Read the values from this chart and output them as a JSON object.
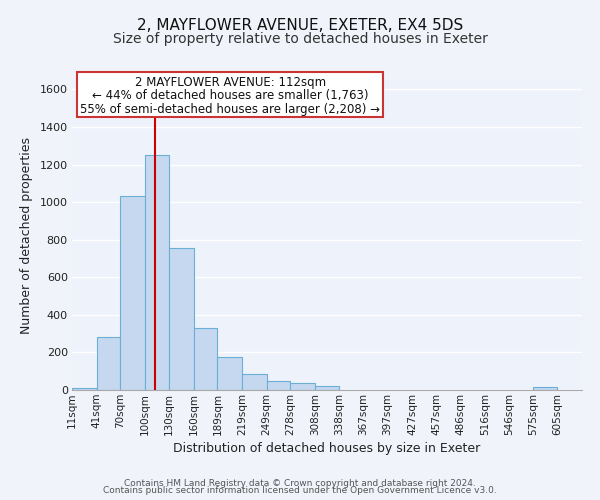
{
  "title": "2, MAYFLOWER AVENUE, EXETER, EX4 5DS",
  "subtitle": "Size of property relative to detached houses in Exeter",
  "xlabel": "Distribution of detached houses by size in Exeter",
  "ylabel": "Number of detached properties",
  "bar_left_edges": [
    11,
    41,
    70,
    100,
    130,
    160,
    189,
    219,
    249,
    278,
    308,
    338,
    367,
    397,
    427,
    457,
    486,
    516,
    546,
    575
  ],
  "bar_heights": [
    10,
    280,
    1035,
    1250,
    755,
    330,
    175,
    85,
    50,
    35,
    20,
    0,
    0,
    0,
    0,
    0,
    0,
    0,
    0,
    15
  ],
  "bar_widths": [
    30,
    29,
    30,
    30,
    30,
    29,
    30,
    30,
    29,
    30,
    30,
    29,
    30,
    30,
    30,
    29,
    30,
    30,
    29,
    30
  ],
  "tick_labels": [
    "11sqm",
    "41sqm",
    "70sqm",
    "100sqm",
    "130sqm",
    "160sqm",
    "189sqm",
    "219sqm",
    "249sqm",
    "278sqm",
    "308sqm",
    "338sqm",
    "367sqm",
    "397sqm",
    "427sqm",
    "457sqm",
    "486sqm",
    "516sqm",
    "546sqm",
    "575sqm",
    "605sqm"
  ],
  "tick_positions": [
    11,
    41,
    70,
    100,
    130,
    160,
    189,
    219,
    249,
    278,
    308,
    338,
    367,
    397,
    427,
    457,
    486,
    516,
    546,
    575,
    605
  ],
  "bar_color": "#c5d8f0",
  "bar_edge_color": "#6baed6",
  "vline_x": 112,
  "vline_color": "#cc0000",
  "ylim": [
    0,
    1650
  ],
  "xlim": [
    11,
    635
  ],
  "annotation_line1": "2 MAYFLOWER AVENUE: 112sqm",
  "annotation_line2": "← 44% of detached houses are smaller (1,763)",
  "annotation_line3": "55% of semi-detached houses are larger (2,208) →",
  "footer_line1": "Contains HM Land Registry data © Crown copyright and database right 2024.",
  "footer_line2": "Contains public sector information licensed under the Open Government Licence v3.0.",
  "bg_color": "#f0f4fa",
  "plot_bg_color": "#eef2fa",
  "grid_color": "#ffffff",
  "title_fontsize": 11,
  "subtitle_fontsize": 10,
  "axis_label_fontsize": 9,
  "tick_fontsize": 7.5,
  "footer_fontsize": 6.5,
  "annotation_fontsize": 8.5,
  "yticks": [
    0,
    200,
    400,
    600,
    800,
    1000,
    1200,
    1400,
    1600
  ]
}
